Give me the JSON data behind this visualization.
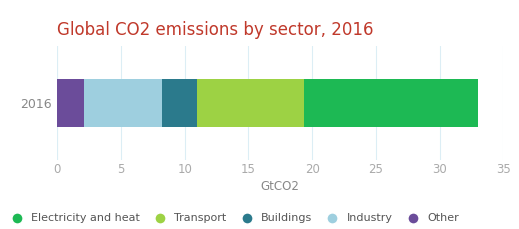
{
  "title": "Global CO2 emissions by sector, 2016",
  "title_color": "#c0392b",
  "year_label": "2016",
  "xlabel": "GtCO2",
  "xlabel_color": "#888888",
  "xlim": [
    0,
    35
  ],
  "xticks": [
    0,
    5,
    10,
    15,
    20,
    25,
    30,
    35
  ],
  "segments": [
    {
      "label": "Other",
      "value": 2.1,
      "color": "#6b4c9a"
    },
    {
      "label": "Industry",
      "value": 6.1,
      "color": "#9ecfdf"
    },
    {
      "label": "Buildings",
      "value": 2.8,
      "color": "#2b7a8c"
    },
    {
      "label": "Transport",
      "value": 8.4,
      "color": "#9dd244"
    },
    {
      "label": "Electricity and heat",
      "value": 13.6,
      "color": "#1db954"
    }
  ],
  "legend_order": [
    "Electricity and heat",
    "Transport",
    "Buildings",
    "Industry",
    "Other"
  ],
  "legend_colors": {
    "Electricity and heat": "#1db954",
    "Transport": "#9dd244",
    "Buildings": "#2b7a8c",
    "Industry": "#9ecfdf",
    "Other": "#6b4c9a"
  },
  "bar_height": 0.38,
  "tick_color": "#aaaaaa",
  "grid_color": "#dceef5",
  "axis_label_color": "#888888",
  "year_label_color": "#888888",
  "background_color": "#ffffff",
  "title_fontsize": 12,
  "legend_fontsize": 8,
  "axis_fontsize": 8.5
}
